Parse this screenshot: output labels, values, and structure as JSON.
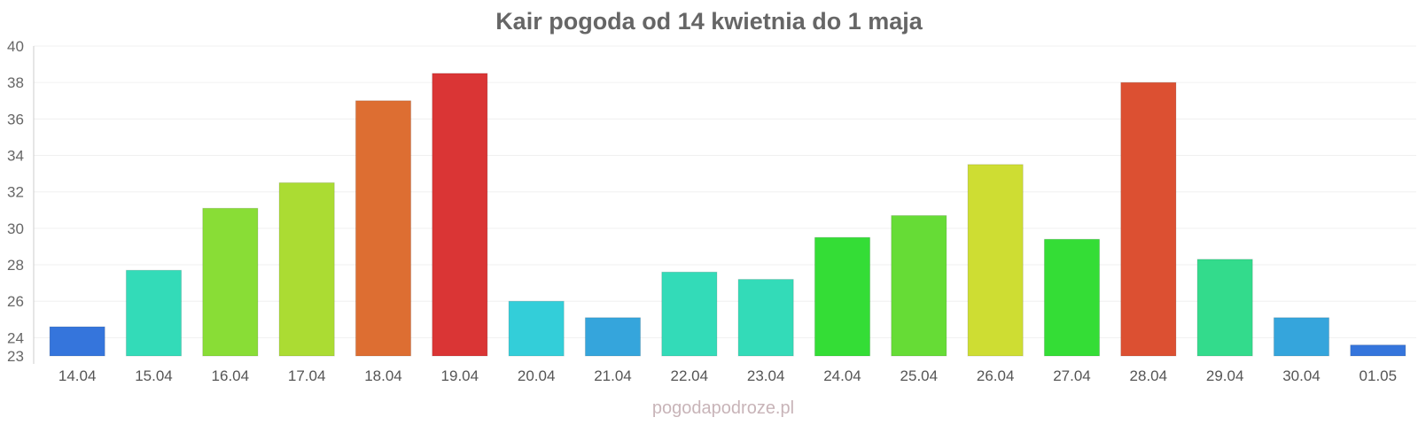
{
  "watermark": "pogodapodroze.pl",
  "chart_data": {
    "type": "bar",
    "title": "Kair pogoda od 14 kwietnia do 1 maja",
    "xlabel": "",
    "ylabel": "",
    "ylim": [
      23,
      40
    ],
    "yticks": [
      23,
      24,
      26,
      28,
      30,
      32,
      34,
      36,
      38,
      40
    ],
    "grid": true,
    "categories": [
      "14.04",
      "15.04",
      "16.04",
      "17.04",
      "18.04",
      "19.04",
      "20.04",
      "21.04",
      "22.04",
      "23.04",
      "24.04",
      "25.04",
      "26.04",
      "27.04",
      "28.04",
      "29.04",
      "30.04",
      "01.05"
    ],
    "values": [
      24.6,
      27.7,
      31.1,
      32.5,
      37.0,
      38.5,
      26.0,
      25.1,
      27.6,
      27.2,
      29.5,
      30.7,
      33.5,
      29.4,
      38.0,
      28.3,
      25.1,
      23.6
    ],
    "colors": [
      "#3575dc",
      "#33dbb8",
      "#89dd36",
      "#abdc33",
      "#dd6e32",
      "#da3535",
      "#33ced9",
      "#35a5dc",
      "#33dbb8",
      "#33dbb8",
      "#34dd36",
      "#66dc36",
      "#cedd33",
      "#34dd36",
      "#dc5032",
      "#33db8c",
      "#35a5dc",
      "#3575dc"
    ]
  }
}
